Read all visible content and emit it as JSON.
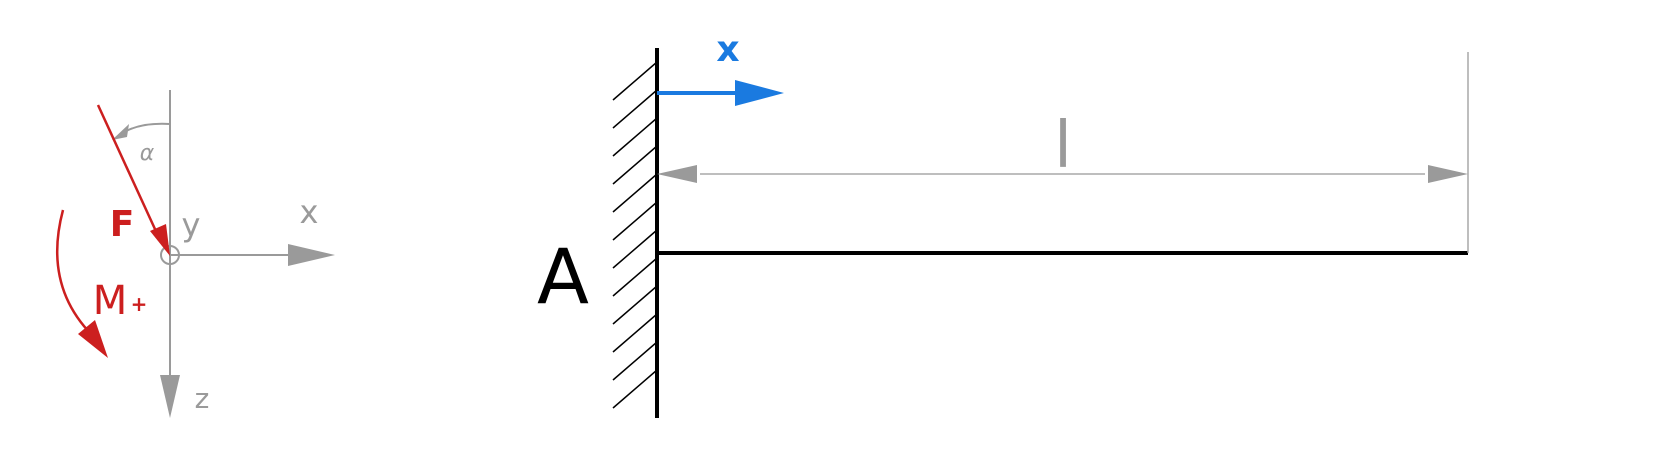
{
  "colors": {
    "gray": "#9a9a9a",
    "red": "#cc1f1f",
    "blue": "#1a7ae0",
    "black": "#000000"
  },
  "legend": {
    "alpha": "α",
    "force": "F",
    "y_axis": "y",
    "x_axis": "x",
    "moment": "M",
    "moment_sign": "+",
    "z_axis": "z"
  },
  "beam": {
    "local_x": "x",
    "length": "l",
    "support": "A"
  }
}
